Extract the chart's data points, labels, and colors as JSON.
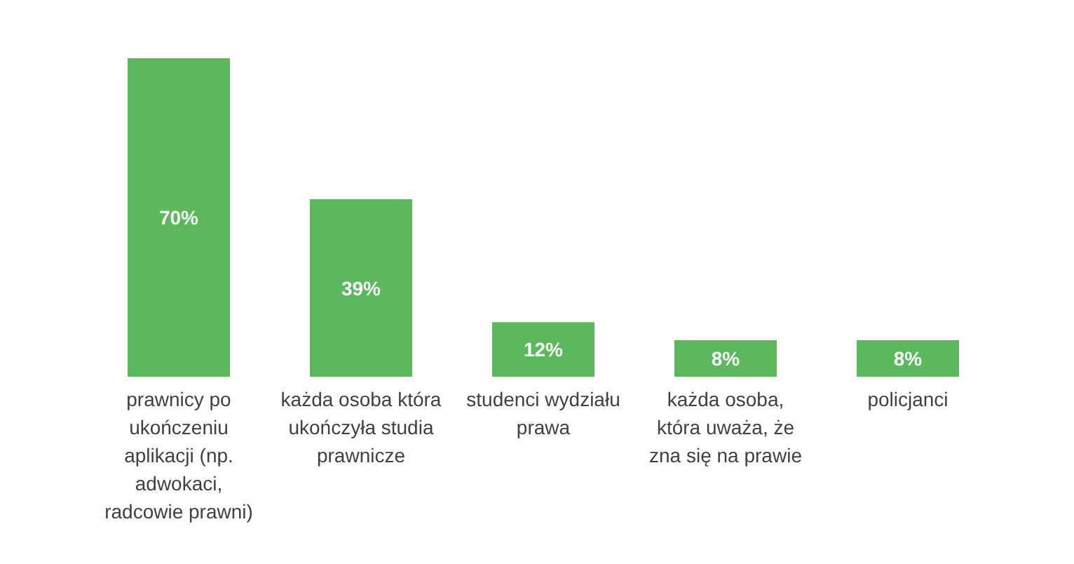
{
  "chart_data": {
    "type": "bar",
    "categories": [
      "prawnicy po ukończeniu aplikacji (np. adwokaci, radcowie prawni)",
      "każda osoba która ukończyła studia prawnicze",
      "studenci wydziału prawa",
      "każda osoba, która uważa, że zna się na prawie",
      "policjanci"
    ],
    "values": [
      70,
      39,
      12,
      8,
      8
    ],
    "value_labels": [
      "70%",
      "39%",
      "12%",
      "8%",
      "8%"
    ],
    "color": "#5cb85c"
  }
}
